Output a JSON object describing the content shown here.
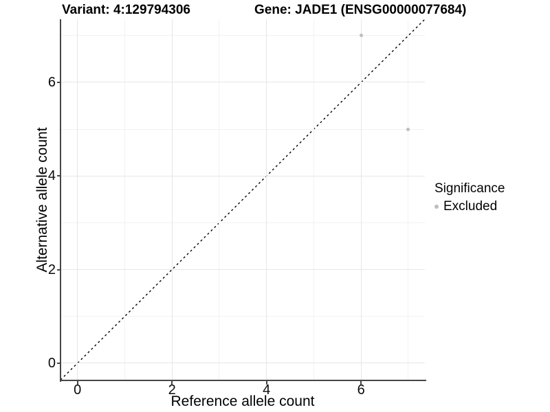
{
  "titles": {
    "left": "Variant: 4:129794306",
    "right": "Gene: JADE1 (ENSG00000077684)"
  },
  "chart_data": {
    "type": "scatter",
    "xlabel": "Reference allele count",
    "ylabel": "Alternative allele count",
    "xlim": [
      -0.36,
      7.35
    ],
    "ylim": [
      -0.37,
      7.35
    ],
    "x_ticks": [
      0,
      2,
      4,
      6
    ],
    "y_ticks": [
      0,
      2,
      4,
      6
    ],
    "x_minor_ticks": [
      1,
      3,
      5,
      7
    ],
    "y_minor_ticks": [
      1,
      3,
      5,
      7
    ],
    "grid": true,
    "series": [
      {
        "name": "Excluded",
        "points": [
          {
            "x": 6,
            "y": 7
          },
          {
            "x": 7,
            "y": 5
          }
        ]
      }
    ],
    "identity_line": {
      "style": "dashed",
      "from": [
        -0.36,
        -0.36
      ],
      "to": [
        7.35,
        7.35
      ]
    },
    "legend": {
      "title": "Significance",
      "position": "right",
      "items": [
        {
          "label": "Excluded",
          "color": "#bdbdbd"
        }
      ]
    }
  },
  "colors": {
    "point_excluded": "#bdbdbd",
    "axis_line": "#464646",
    "grid_major": "#e6e6e6",
    "grid_minor": "#f2f2f2",
    "dashed_line": "#000000",
    "background": "#ffffff"
  }
}
